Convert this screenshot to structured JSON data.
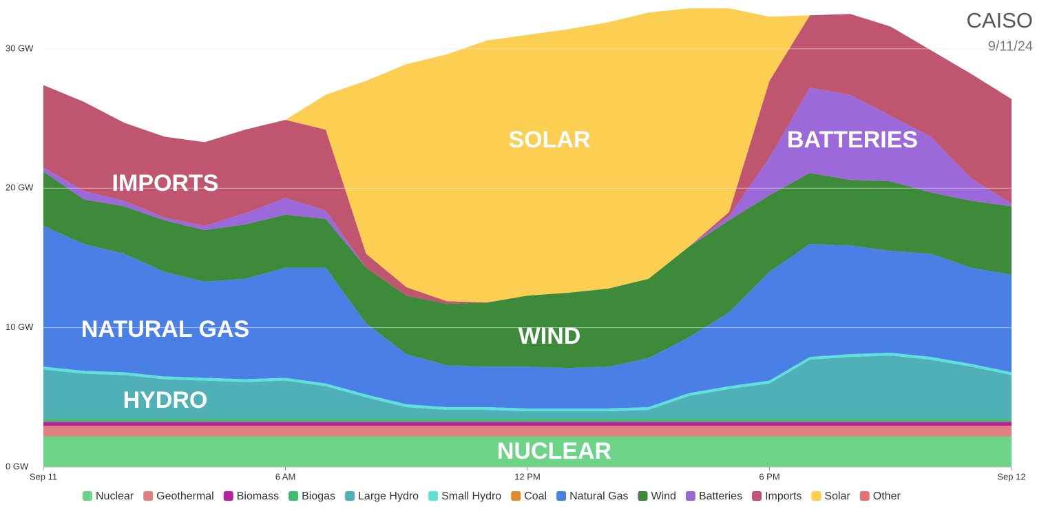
{
  "chart_data": {
    "type": "area",
    "stacked": true,
    "title": "CAISO",
    "subtitle": "9/11/24",
    "annotations": [
      "IMPORTS",
      "SOLAR",
      "BATTERIES",
      "NATURAL GAS",
      "WIND",
      "HYDRO",
      "NUCLEAR"
    ],
    "x": [
      0,
      1,
      2,
      3,
      4,
      5,
      6,
      7,
      8,
      9,
      10,
      11,
      12,
      13,
      14,
      15,
      16,
      17,
      18,
      19,
      20,
      21,
      22,
      23,
      24
    ],
    "xlim": [
      0,
      24
    ],
    "xticks": [
      {
        "value": 0,
        "label": "Sep 11"
      },
      {
        "value": 6,
        "label": "6 AM"
      },
      {
        "value": 12,
        "label": "12 PM"
      },
      {
        "value": 18,
        "label": "6 PM"
      },
      {
        "value": 24,
        "label": "Sep 12"
      }
    ],
    "ylim": [
      0,
      33.5
    ],
    "yticks": [
      {
        "value": 0,
        "label": "0 GW"
      },
      {
        "value": 10,
        "label": "10 GW"
      },
      {
        "value": 20,
        "label": "20 GW"
      },
      {
        "value": 30,
        "label": "30 GW"
      }
    ],
    "grid": true,
    "legend": "bottom",
    "series": [
      {
        "name": "Nuclear",
        "color": "#6dd387",
        "values": [
          2.2,
          2.2,
          2.2,
          2.2,
          2.2,
          2.2,
          2.2,
          2.2,
          2.2,
          2.2,
          2.2,
          2.2,
          2.2,
          2.2,
          2.2,
          2.2,
          2.2,
          2.2,
          2.2,
          2.2,
          2.2,
          2.2,
          2.2,
          2.2,
          2.2
        ]
      },
      {
        "name": "Geothermal",
        "color": "#e08080",
        "values": [
          0.75,
          0.75,
          0.75,
          0.75,
          0.75,
          0.75,
          0.75,
          0.75,
          0.75,
          0.75,
          0.75,
          0.75,
          0.75,
          0.75,
          0.75,
          0.75,
          0.75,
          0.75,
          0.75,
          0.75,
          0.75,
          0.75,
          0.75,
          0.75,
          0.75
        ]
      },
      {
        "name": "Biomass",
        "color": "#b8239e",
        "values": [
          0.3,
          0.3,
          0.3,
          0.3,
          0.3,
          0.3,
          0.3,
          0.3,
          0.3,
          0.3,
          0.3,
          0.3,
          0.3,
          0.3,
          0.3,
          0.3,
          0.3,
          0.3,
          0.3,
          0.3,
          0.3,
          0.3,
          0.3,
          0.3,
          0.3
        ]
      },
      {
        "name": "Biogas",
        "color": "#3ebd6a",
        "values": [
          0.2,
          0.2,
          0.2,
          0.2,
          0.2,
          0.2,
          0.2,
          0.2,
          0.2,
          0.2,
          0.2,
          0.2,
          0.2,
          0.2,
          0.2,
          0.2,
          0.2,
          0.2,
          0.2,
          0.2,
          0.2,
          0.2,
          0.2,
          0.2,
          0.2
        ]
      },
      {
        "name": "Large Hydro",
        "color": "#4fb0b8",
        "values": [
          3.55,
          3.25,
          3.15,
          2.85,
          2.75,
          2.65,
          2.75,
          2.35,
          1.55,
          0.85,
          0.65,
          0.65,
          0.55,
          0.55,
          0.55,
          0.65,
          1.65,
          2.15,
          2.55,
          4.25,
          4.45,
          4.55,
          4.25,
          3.75,
          3.15
        ]
      },
      {
        "name": "Small Hydro",
        "color": "#5ee0dc",
        "values": [
          0.2,
          0.2,
          0.2,
          0.2,
          0.2,
          0.2,
          0.2,
          0.2,
          0.2,
          0.2,
          0.2,
          0.2,
          0.2,
          0.2,
          0.2,
          0.2,
          0.2,
          0.2,
          0.2,
          0.2,
          0.2,
          0.2,
          0.2,
          0.2,
          0.2
        ]
      },
      {
        "name": "Coal",
        "color": "#e28a2e",
        "values": [
          0,
          0,
          0,
          0,
          0,
          0,
          0,
          0,
          0,
          0,
          0,
          0,
          0,
          0,
          0,
          0,
          0,
          0,
          0,
          0,
          0,
          0,
          0,
          0,
          0
        ]
      },
      {
        "name": "Natural Gas",
        "color": "#4a7fe6",
        "values": [
          10.1,
          9.1,
          8.5,
          7.5,
          6.9,
          7.2,
          7.9,
          8.3,
          5.1,
          3.6,
          3.0,
          2.9,
          3.0,
          2.9,
          3.0,
          3.5,
          4.0,
          5.3,
          7.8,
          8.1,
          7.8,
          7.3,
          7.4,
          6.9,
          7.0
        ]
      },
      {
        "name": "Wind",
        "color": "#3d8a3a",
        "values": [
          3.9,
          3.2,
          3.4,
          3.7,
          3.7,
          3.9,
          3.8,
          3.5,
          4.0,
          4.2,
          4.4,
          4.6,
          5.1,
          5.4,
          5.6,
          5.7,
          6.5,
          6.6,
          5.5,
          5.1,
          4.7,
          5.0,
          4.4,
          4.8,
          4.9
        ]
      },
      {
        "name": "Batteries",
        "color": "#9b69d9",
        "values": [
          0.3,
          0.6,
          0.4,
          0.2,
          0.3,
          0.8,
          1.2,
          0.6,
          0,
          0,
          0,
          0,
          0,
          0,
          0,
          0,
          0,
          0.3,
          2.7,
          6.1,
          6.1,
          4.7,
          4.0,
          1.6,
          0.2
        ]
      },
      {
        "name": "Imports",
        "color": "#c0556f",
        "values": [
          5.9,
          6.4,
          5.6,
          5.8,
          6.0,
          6.0,
          5.6,
          5.8,
          1.0,
          0.6,
          0.2,
          0,
          0,
          0,
          0,
          0,
          0,
          0.3,
          5.5,
          5.2,
          5.8,
          6.4,
          6.2,
          7.5,
          7.5
        ]
      },
      {
        "name": "Solar",
        "color": "#fccf52",
        "values": [
          0,
          0,
          0,
          0,
          0,
          0,
          0,
          2.5,
          12.4,
          16.0,
          17.7,
          18.8,
          18.7,
          18.9,
          19.1,
          19.1,
          17.1,
          14.6,
          4.6,
          0,
          0,
          0,
          0,
          0,
          0
        ]
      },
      {
        "name": "Other",
        "color": "#e57373",
        "values": [
          0,
          0,
          0,
          0,
          0,
          0,
          0,
          0,
          0,
          0,
          0,
          0,
          0,
          0,
          0,
          0,
          0,
          0,
          0,
          0,
          0,
          0,
          0,
          0,
          0
        ]
      }
    ]
  }
}
